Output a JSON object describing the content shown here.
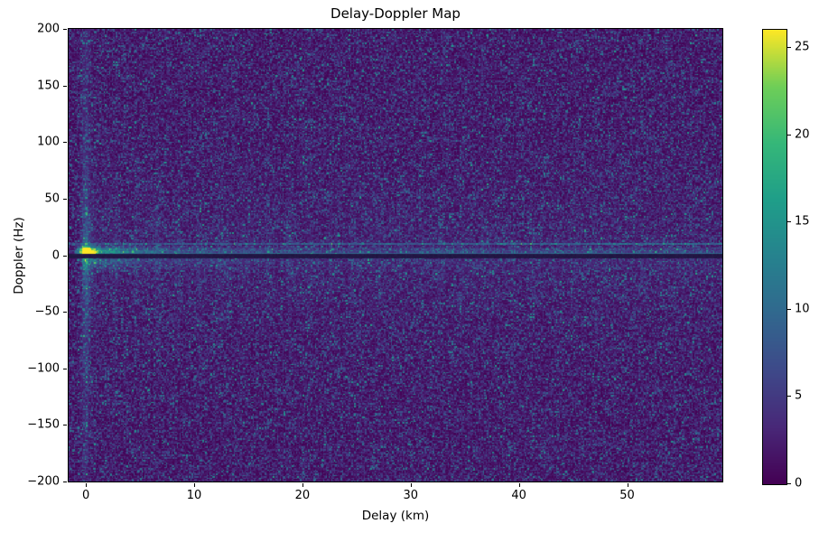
{
  "figure": {
    "title": "Delay-Doppler Map",
    "xlabel": "Delay (km)",
    "ylabel": "Doppler (Hz)"
  },
  "colors": {
    "background": "#ffffff",
    "spine": "#000000",
    "text": "#000000",
    "null_line_rgb": [
      22,
      14,
      52
    ]
  },
  "chart_data": {
    "type": "heatmap",
    "title": "Delay-Doppler Map",
    "xlabel": "Delay (km)",
    "ylabel": "Doppler (Hz)",
    "x_range": [
      -1.6,
      58.8
    ],
    "y_range": [
      -200,
      200
    ],
    "x_tick_values": [
      0,
      10,
      20,
      30,
      40,
      50
    ],
    "x_tick_labels": [
      "0",
      "10",
      "20",
      "30",
      "40",
      "50"
    ],
    "y_tick_values": [
      200,
      150,
      100,
      50,
      0,
      -50,
      -100,
      -150,
      -200
    ],
    "y_tick_labels": [
      "200",
      "150",
      "100",
      "50",
      "0",
      "−50",
      "−100",
      "−150",
      "−200"
    ],
    "grid": false,
    "legend": null,
    "colorbar": {
      "vmin": 0,
      "vmax": 26,
      "tick_values": [
        0,
        5,
        10,
        15,
        20,
        25
      ],
      "tick_labels": [
        "0",
        "5",
        "10",
        "15",
        "20",
        "25"
      ],
      "colormap": "viridis"
    },
    "colormap_stops": [
      [
        0.0,
        68,
        1,
        84
      ],
      [
        0.125,
        72,
        40,
        120
      ],
      [
        0.25,
        62,
        73,
        137
      ],
      [
        0.375,
        49,
        104,
        142
      ],
      [
        0.5,
        38,
        130,
        142
      ],
      [
        0.625,
        31,
        158,
        137
      ],
      [
        0.75,
        53,
        183,
        121
      ],
      [
        0.875,
        110,
        206,
        88
      ],
      [
        1.0,
        253,
        231,
        37
      ]
    ],
    "features": {
      "seed": 42,
      "background_noise_mean": 3.2,
      "specular_point": {
        "delay_km": 0,
        "doppler_hz": 2.8,
        "value": 26
      },
      "zero_doppler_null_line": {
        "doppler_hz": 0,
        "value": 0.3,
        "extent": "full width"
      },
      "zero_doppler_ridge": {
        "doppler_hz": 3,
        "peak_value": 20,
        "decay_scale_km": 5,
        "blob_spacing_km": 2
      },
      "zero_delay_stripe": {
        "delay_km": 0,
        "amplitude": 6,
        "extent": "full doppler range"
      },
      "interference_line": {
        "doppler_hz": 10,
        "amplitude": 4,
        "extent": "full width"
      }
    }
  }
}
